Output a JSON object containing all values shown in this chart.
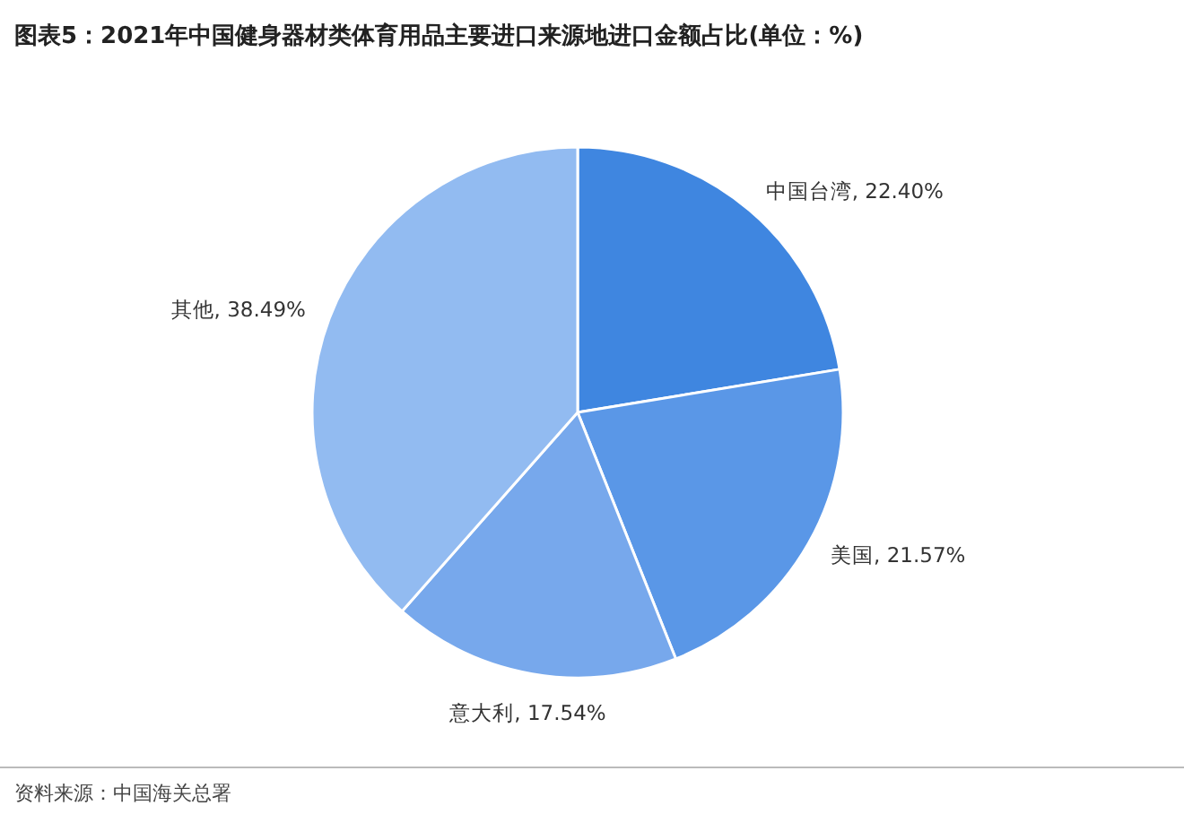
{
  "chart_data": {
    "type": "pie",
    "title": "图表5：2021年中国健身器材类体育用品主要进口来源地进口金额占比(单位：%)",
    "categories": [
      "中国台湾",
      "美国",
      "意大利",
      "其他"
    ],
    "values": [
      22.4,
      21.57,
      17.54,
      38.49
    ],
    "value_labels": [
      "22.40%",
      "21.57%",
      "17.54%",
      "38.49%"
    ],
    "colors": [
      "#3f86e0",
      "#5a97e7",
      "#77a8ec",
      "#92bbf1"
    ],
    "annotations": [
      "资料来源：中国海关总署"
    ]
  }
}
